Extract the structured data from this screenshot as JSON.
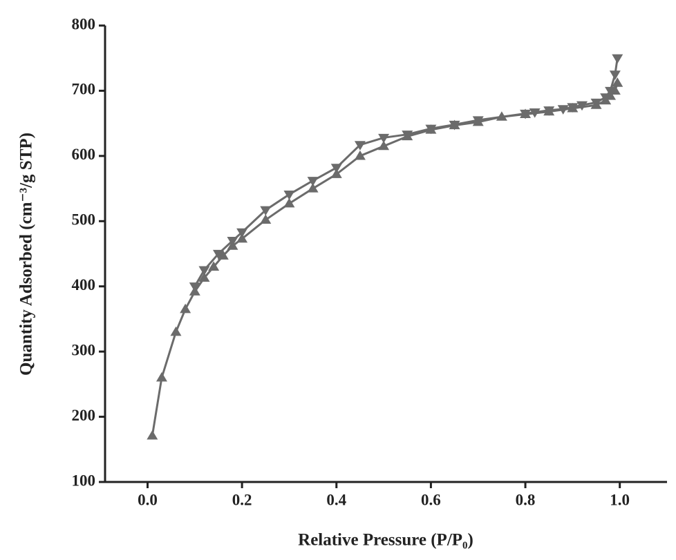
{
  "chart_data": {
    "type": "line",
    "x_label": "Relative Pressure (P/P₀)",
    "y_label": "Quantity Adsorbed (cm⁻³/g  STP)",
    "xlim": [
      -0.09,
      1.1
    ],
    "ylim": [
      100,
      800
    ],
    "xticks": [
      {
        "value": 0,
        "label": "0.0"
      },
      0.2,
      0.4,
      0.6,
      0.8,
      {
        "value": 1,
        "label": "1.0"
      }
    ],
    "yticks": [
      100,
      200,
      300,
      400,
      500,
      600,
      700,
      800
    ],
    "series": [
      {
        "color": "#6b6b6b",
        "marker": "triangle-up",
        "x": [
          0.01,
          0.03,
          0.06,
          0.08,
          0.1,
          0.12,
          0.14,
          0.16,
          0.18,
          0.2,
          0.25,
          0.3,
          0.35,
          0.4,
          0.45,
          0.5,
          0.55,
          0.6,
          0.65,
          0.7,
          0.75,
          0.8,
          0.85,
          0.9,
          0.95,
          0.97,
          0.98,
          0.99,
          0.995
        ],
        "values": [
          171,
          260,
          330,
          365,
          392,
          413,
          430,
          447,
          462,
          473,
          502,
          527,
          550,
          572,
          600,
          615,
          630,
          640,
          647,
          652,
          660,
          664,
          668,
          673,
          678,
          685,
          692,
          700,
          712
        ]
      },
      {
        "color": "#6b6b6b",
        "marker": "triangle-down",
        "x": [
          0.995,
          0.99,
          0.98,
          0.97,
          0.95,
          0.92,
          0.9,
          0.88,
          0.85,
          0.82,
          0.8,
          0.7,
          0.65,
          0.6,
          0.55,
          0.5,
          0.45,
          0.4,
          0.35,
          0.3,
          0.25,
          0.2,
          0.18,
          0.15,
          0.12,
          0.1
        ],
        "values": [
          750,
          725,
          700,
          690,
          682,
          678,
          675,
          672,
          670,
          667,
          665,
          655,
          648,
          642,
          633,
          628,
          617,
          582,
          562,
          541,
          517,
          483,
          470,
          450,
          425,
          400
        ]
      }
    ]
  }
}
